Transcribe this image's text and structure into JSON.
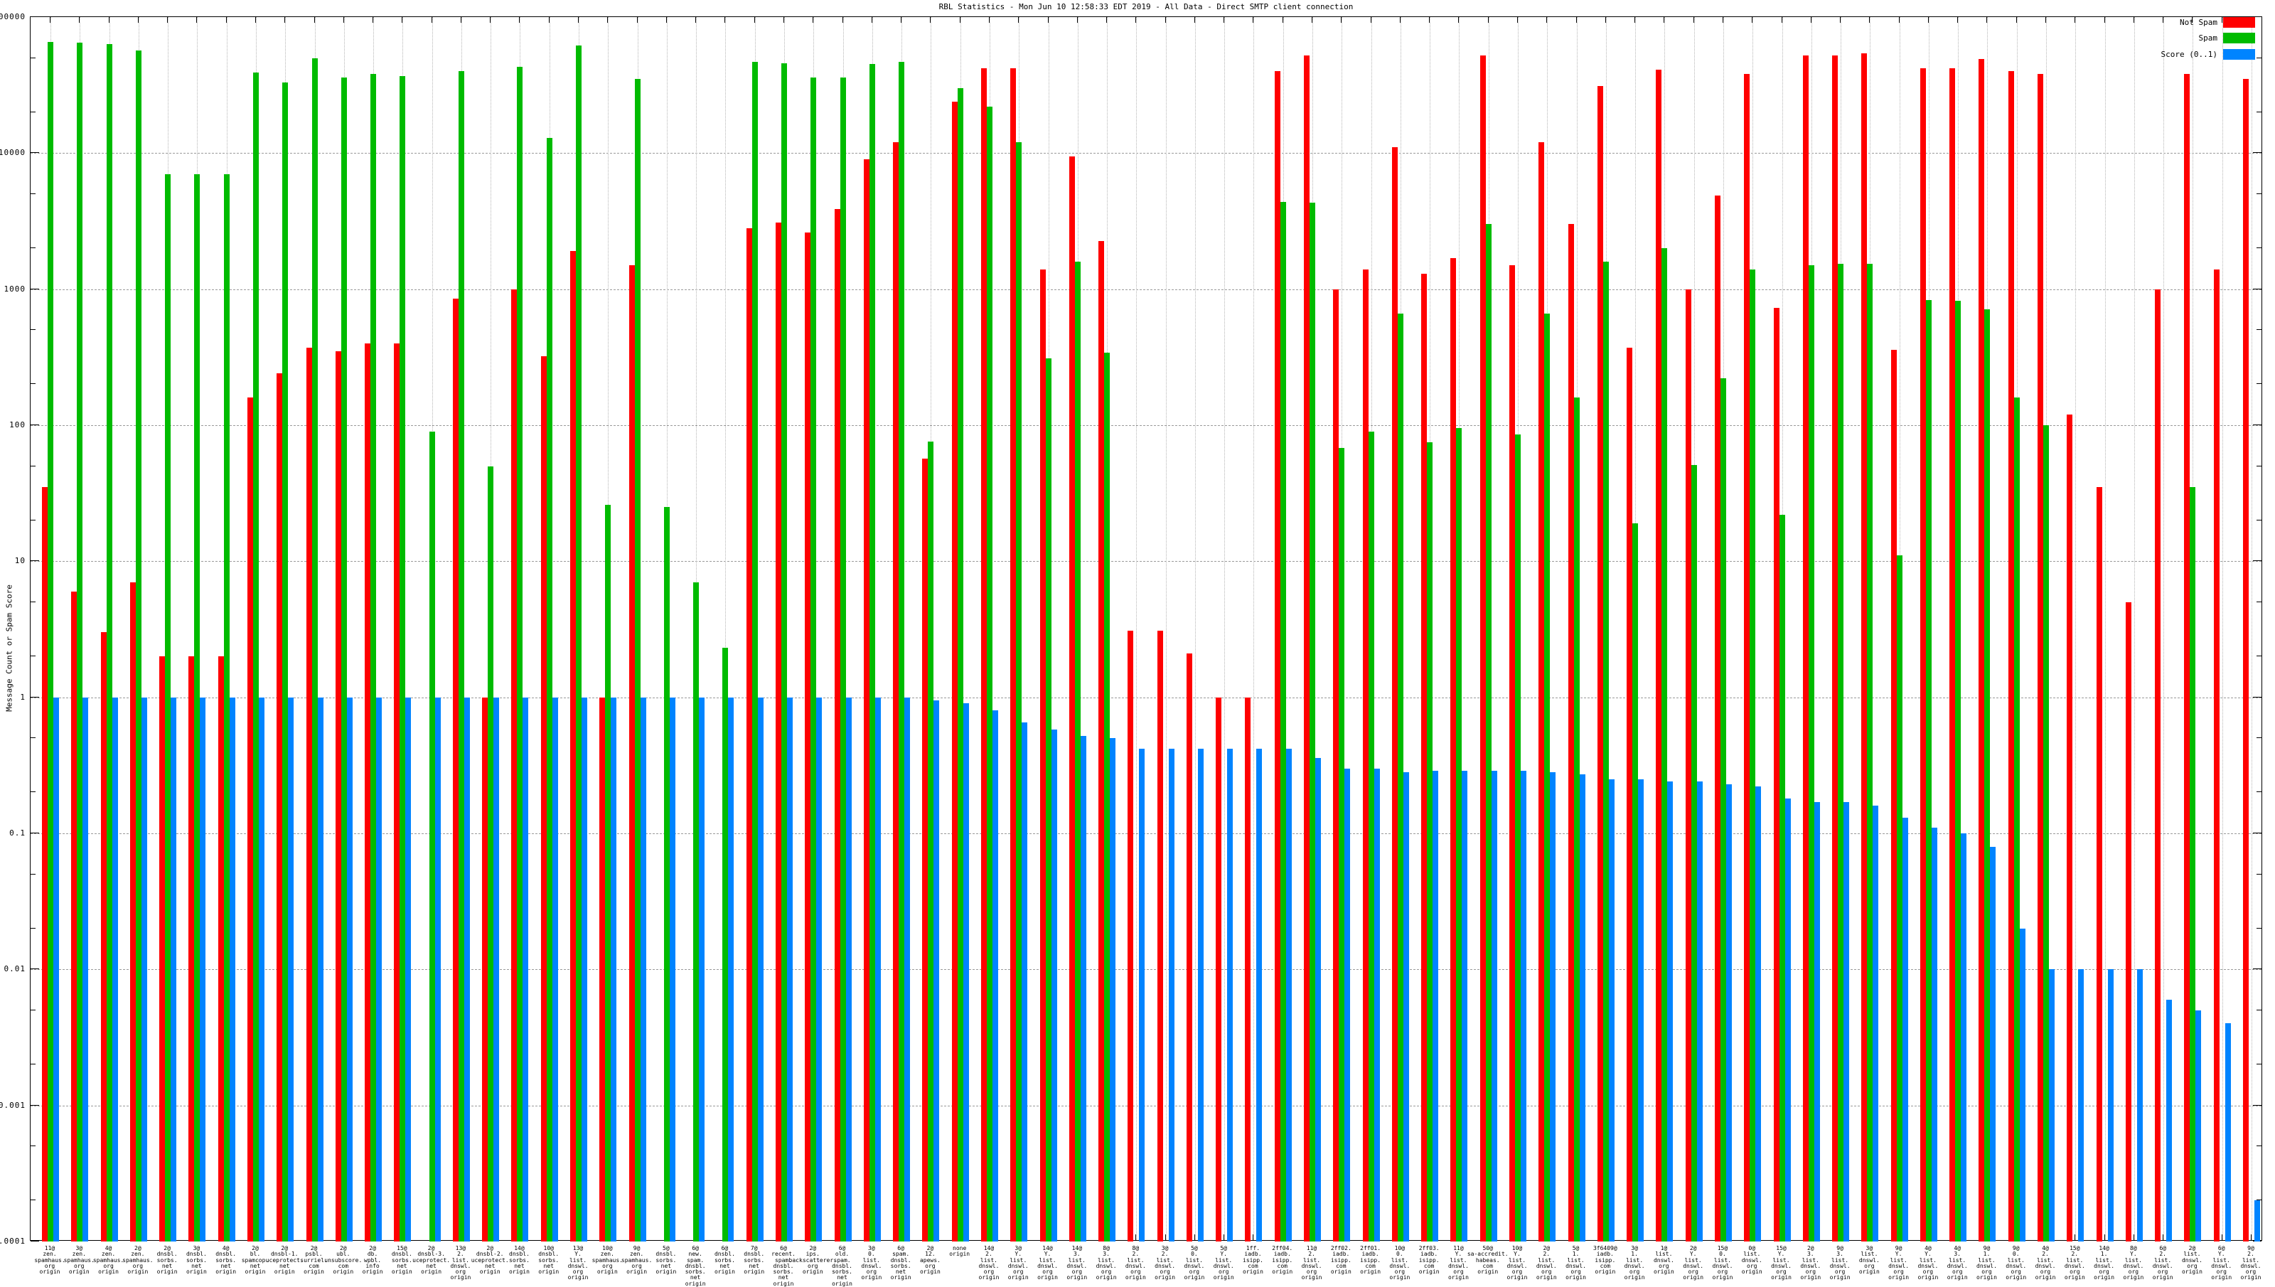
{
  "header": {
    "title": "RBL Statistics - Mon Jun 10 12:58:33 EDT 2019 - All Data - Direct SMTP client connection"
  },
  "y_axis": {
    "label": "Message Count or Spam Score",
    "ticks": [
      {
        "exp": 5,
        "label": "100000"
      },
      {
        "exp": 4,
        "label": "10000"
      },
      {
        "exp": 3,
        "label": "1000"
      },
      {
        "exp": 2,
        "label": "100"
      },
      {
        "exp": 1,
        "label": "10"
      },
      {
        "exp": 0,
        "label": "1"
      },
      {
        "exp": -1,
        "label": "0.1"
      },
      {
        "exp": -2,
        "label": "0.01"
      },
      {
        "exp": -3,
        "label": "0.001"
      },
      {
        "exp": -4,
        "label": "0.0001"
      }
    ]
  },
  "colors": {
    "not_spam": "#ff0000",
    "spam": "#00bb00",
    "score": "#0084ff",
    "axis": "#000000",
    "grid_dash": "#9a9a9a",
    "grid_dot": "#b5b5b5"
  },
  "chart_data": {
    "type": "bar",
    "log_scale": true,
    "ylim": [
      0.0001,
      100000
    ],
    "ylabel": "Message Count or Spam Score",
    "grid": true,
    "legend_position": "top-right",
    "series": [
      {
        "key": "not_spam",
        "name": "Not Spam",
        "color": "#ff0000"
      },
      {
        "key": "spam",
        "name": "Spam",
        "color": "#00bb00"
      },
      {
        "key": "score",
        "name": "Score (0..1)",
        "color": "#0084ff"
      }
    ],
    "groups": [
      {
        "label_lines": [
          "11@",
          "zen.",
          "spamhaus.",
          "org",
          "origin"
        ],
        "not_spam": 35,
        "spam": 66000,
        "score": 1.0
      },
      {
        "label_lines": [
          "3@",
          "zen.",
          "spamhaus.",
          "org",
          "origin"
        ],
        "not_spam": 6,
        "spam": 65000,
        "score": 1.0
      },
      {
        "label_lines": [
          "4@",
          "zen.",
          "spamhaus.",
          "org",
          "origin"
        ],
        "not_spam": 3,
        "spam": 63000,
        "score": 1.0
      },
      {
        "label_lines": [
          "2@",
          "zen.",
          "spamhaus.",
          "org",
          "origin"
        ],
        "not_spam": 7,
        "spam": 57000,
        "score": 1.0
      },
      {
        "label_lines": [
          "2@",
          "dnsbl.",
          "sorbs.",
          "net",
          "origin"
        ],
        "not_spam": 2,
        "spam": 7000,
        "score": 1.0
      },
      {
        "label_lines": [
          "3@",
          "dnsbl.",
          "sorbs.",
          "net",
          "origin"
        ],
        "not_spam": 2,
        "spam": 7000,
        "score": 1.0
      },
      {
        "label_lines": [
          "4@",
          "dnsbl.",
          "sorbs.",
          "net",
          "origin"
        ],
        "not_spam": 2,
        "spam": 7000,
        "score": 1.0
      },
      {
        "label_lines": [
          "2@",
          "bl.",
          "spamcop.",
          "net",
          "origin"
        ],
        "not_spam": 160,
        "spam": 39000,
        "score": 1.0
      },
      {
        "label_lines": [
          "2@",
          "dnsbl-1.",
          "uceprotect.",
          "net",
          "origin"
        ],
        "not_spam": 240,
        "spam": 33000,
        "score": 1.0
      },
      {
        "label_lines": [
          "2@",
          "psbl.",
          "surriel.",
          "com",
          "origin"
        ],
        "not_spam": 370,
        "spam": 50000,
        "score": 1.0
      },
      {
        "label_lines": [
          "2@",
          "ubl.",
          "unsubscore.",
          "com",
          "origin"
        ],
        "not_spam": 350,
        "spam": 36000,
        "score": 1.0
      },
      {
        "label_lines": [
          "2@",
          "db.",
          "wpbl.",
          "info",
          "origin"
        ],
        "not_spam": 400,
        "spam": 38000,
        "score": 1.0
      },
      {
        "label_lines": [
          "15@",
          "dnsbl.",
          "sorbs.",
          "net",
          "origin"
        ],
        "not_spam": 400,
        "spam": 37000,
        "score": 1.0
      },
      {
        "label_lines": [
          "2@",
          "dnsbl-3.",
          "uceprotect.",
          "net",
          "origin"
        ],
        "not_spam": null,
        "spam": 90,
        "score": 1.0
      },
      {
        "label_lines": [
          "13@",
          "2.",
          "list.",
          "dnswl.",
          "org",
          "origin"
        ],
        "not_spam": 850,
        "spam": 40000,
        "score": 1.0
      },
      {
        "label_lines": [
          "2@",
          "dnsbl-2.",
          "uceprotect.",
          "net",
          "origin"
        ],
        "not_spam": 1,
        "spam": 50,
        "score": 1.0
      },
      {
        "label_lines": [
          "14@",
          "dnsbl.",
          "sorbs.",
          "net",
          "origin"
        ],
        "not_spam": 1000,
        "spam": 43000,
        "score": 1.0
      },
      {
        "label_lines": [
          "10@",
          "dnsbl.",
          "sorbs.",
          "net",
          "origin"
        ],
        "not_spam": 320,
        "spam": 13000,
        "score": 1.0
      },
      {
        "label_lines": [
          "13@",
          "Y.",
          "list.",
          "dnswl.",
          "org",
          "origin"
        ],
        "not_spam": 1900,
        "spam": 62000,
        "score": 1.0
      },
      {
        "label_lines": [
          "10@",
          "zen.",
          "spamhaus.",
          "org",
          "origin"
        ],
        "not_spam": 1,
        "spam": 26,
        "score": 1.0
      },
      {
        "label_lines": [
          "9@",
          "zen.",
          "spamhaus.",
          "org",
          "origin"
        ],
        "not_spam": 1500,
        "spam": 35000,
        "score": 1.0
      },
      {
        "label_lines": [
          "5@",
          "dnsbl.",
          "sorbs.",
          "net",
          "origin"
        ],
        "not_spam": null,
        "spam": 25,
        "score": 1.0
      },
      {
        "label_lines": [
          "6@",
          "new.",
          "spam.",
          "dnsbl.",
          "sorbs.",
          "net",
          "origin"
        ],
        "not_spam": null,
        "spam": 7,
        "score": 1.0
      },
      {
        "label_lines": [
          "6@",
          "dnsbl.",
          "sorbs.",
          "net",
          "origin"
        ],
        "not_spam": null,
        "spam": 2.3,
        "score": 1.0
      },
      {
        "label_lines": [
          "7@",
          "dnsbl.",
          "sorbs.",
          "net",
          "origin"
        ],
        "not_spam": 2800,
        "spam": 47000,
        "score": 1.0
      },
      {
        "label_lines": [
          "6@",
          "recent.",
          "spam.",
          "dnsbl.",
          "sorbs.",
          "net",
          "origin"
        ],
        "not_spam": 3100,
        "spam": 46000,
        "score": 1.0
      },
      {
        "label_lines": [
          "2@",
          "ips.",
          "backscatterer.",
          "org",
          "origin"
        ],
        "not_spam": 2600,
        "spam": 36000,
        "score": 1.0
      },
      {
        "label_lines": [
          "6@",
          "old.",
          "spam.",
          "dnsbl.",
          "sorbs.",
          "net",
          "origin"
        ],
        "not_spam": 3900,
        "spam": 36000,
        "score": 1.0
      },
      {
        "label_lines": [
          "3@",
          "0.",
          "list.",
          "dnswl.",
          "org",
          "origin"
        ],
        "not_spam": 9000,
        "spam": 45000,
        "score": 1.0
      },
      {
        "label_lines": [
          "6@",
          "spam.",
          "dnsbl.",
          "sorbs.",
          "net",
          "origin"
        ],
        "not_spam": 12000,
        "spam": 47000,
        "score": 1.0
      },
      {
        "label_lines": [
          "2@",
          "12.",
          "apews.",
          "org",
          "origin"
        ],
        "not_spam": 57,
        "spam": 76,
        "score": 0.95
      },
      {
        "label_lines": [
          "none",
          "origin"
        ],
        "not_spam": 24000,
        "spam": 30000,
        "score": 0.9
      },
      {
        "label_lines": [
          "14@",
          "2.",
          "list.",
          "dnswl.",
          "org",
          "origin"
        ],
        "not_spam": 42000,
        "spam": 22000,
        "score": 0.8
      },
      {
        "label_lines": [
          "3@",
          "Y.",
          "list.",
          "dnswl.",
          "org",
          "origin"
        ],
        "not_spam": 42000,
        "spam": 12000,
        "score": 0.65
      },
      {
        "label_lines": [
          "14@",
          "Y.",
          "list.",
          "dnswl.",
          "org",
          "origin"
        ],
        "not_spam": 1400,
        "spam": 310,
        "score": 0.58
      },
      {
        "label_lines": [
          "14@",
          "3.",
          "list.",
          "dnswl.",
          "org",
          "origin"
        ],
        "not_spam": 9500,
        "spam": 1600,
        "score": 0.52
      },
      {
        "label_lines": [
          "8@",
          "3.",
          "list.",
          "dnswl.",
          "org",
          "origin"
        ],
        "not_spam": 2250,
        "spam": 340,
        "score": 0.5
      },
      {
        "label_lines": [
          "8@",
          "2.",
          "list.",
          "dnswl.",
          "org",
          "origin"
        ],
        "not_spam": 3.1,
        "spam": null,
        "score": 0.42
      },
      {
        "label_lines": [
          "3@",
          "2.",
          "list.",
          "dnswl.",
          "org",
          "origin"
        ],
        "not_spam": 3.1,
        "spam": null,
        "score": 0.42
      },
      {
        "label_lines": [
          "5@",
          "0.",
          "list.",
          "dnswl.",
          "org",
          "origin"
        ],
        "not_spam": 2.1,
        "spam": null,
        "score": 0.42
      },
      {
        "label_lines": [
          "5@",
          "Y.",
          "list.",
          "dnswl.",
          "org",
          "origin"
        ],
        "not_spam": 1,
        "spam": null,
        "score": 0.42
      },
      {
        "label_lines": [
          "1ff.",
          "iadb.",
          "isipp.",
          "com",
          "origin"
        ],
        "not_spam": 1,
        "spam": null,
        "score": 0.42
      },
      {
        "label_lines": [
          "2ff04.",
          "iadb.",
          "isipp.",
          "com",
          "origin"
        ],
        "not_spam": 40000,
        "spam": 4400,
        "score": 0.42
      },
      {
        "label_lines": [
          "11@",
          "2.",
          "list.",
          "dnswl.",
          "org",
          "origin"
        ],
        "not_spam": 52000,
        "spam": 4300,
        "score": 0.36
      },
      {
        "label_lines": [
          "2ff02.",
          "iadb.",
          "isipp.",
          "com",
          "origin"
        ],
        "not_spam": 1000,
        "spam": 68,
        "score": 0.3
      },
      {
        "label_lines": [
          "2ff01.",
          "iadb.",
          "isipp.",
          "com",
          "origin"
        ],
        "not_spam": 1400,
        "spam": 90,
        "score": 0.3
      },
      {
        "label_lines": [
          "10@",
          "0.",
          "list.",
          "dnswl.",
          "org",
          "origin"
        ],
        "not_spam": 11000,
        "spam": 660,
        "score": 0.28
      },
      {
        "label_lines": [
          "2ff03.",
          "iadb.",
          "isipp.",
          "com",
          "origin"
        ],
        "not_spam": 1300,
        "spam": 75,
        "score": 0.29
      },
      {
        "label_lines": [
          "11@",
          "Y.",
          "list.",
          "dnswl.",
          "org",
          "origin"
        ],
        "not_spam": 1700,
        "spam": 95,
        "score": 0.29
      },
      {
        "label_lines": [
          "50@",
          "sa-accredit.",
          "habeas.",
          "com",
          "origin"
        ],
        "not_spam": 52000,
        "spam": 3000,
        "score": 0.29
      },
      {
        "label_lines": [
          "10@",
          "Y.",
          "list.",
          "dnswl.",
          "org",
          "origin"
        ],
        "not_spam": 1500,
        "spam": 86,
        "score": 0.29
      },
      {
        "label_lines": [
          "2@",
          "2.",
          "list.",
          "dnswl.",
          "org",
          "origin"
        ],
        "not_spam": 12000,
        "spam": 660,
        "score": 0.28
      },
      {
        "label_lines": [
          "5@",
          "1.",
          "list.",
          "dnswl.",
          "org",
          "origin"
        ],
        "not_spam": 3000,
        "spam": 160,
        "score": 0.27
      },
      {
        "label_lines": [
          "3f6409@",
          "iadb.",
          "isipp.",
          "com",
          "origin"
        ],
        "not_spam": 31000,
        "spam": 1600,
        "score": 0.25
      },
      {
        "label_lines": [
          "3@",
          "1.",
          "list.",
          "dnswl.",
          "org",
          "origin"
        ],
        "not_spam": 370,
        "spam": 19,
        "score": 0.25
      },
      {
        "label_lines": [
          "1@",
          "list.",
          "dnswl.",
          "org",
          "origin"
        ],
        "not_spam": 41000,
        "spam": 2000,
        "score": 0.24
      },
      {
        "label_lines": [
          "2@",
          "Y.",
          "list.",
          "dnswl.",
          "org",
          "origin"
        ],
        "not_spam": 1000,
        "spam": 51,
        "score": 0.24
      },
      {
        "label_lines": [
          "15@",
          "0.",
          "list.",
          "dnswl.",
          "org",
          "origin"
        ],
        "not_spam": 4900,
        "spam": 220,
        "score": 0.23
      },
      {
        "label_lines": [
          "0@",
          "list.",
          "dnswl.",
          "org",
          "origin"
        ],
        "not_spam": 38000,
        "spam": 1400,
        "score": 0.22
      },
      {
        "label_lines": [
          "15@",
          "Y.",
          "list.",
          "dnswl.",
          "org",
          "origin"
        ],
        "not_spam": 730,
        "spam": 22,
        "score": 0.18
      },
      {
        "label_lines": [
          "2@",
          "3.",
          "list.",
          "dnswl.",
          "org",
          "origin"
        ],
        "not_spam": 52000,
        "spam": 1500,
        "score": 0.17
      },
      {
        "label_lines": [
          "9@",
          "3.",
          "list.",
          "dnswl.",
          "org",
          "origin"
        ],
        "not_spam": 52000,
        "spam": 1540,
        "score": 0.17
      },
      {
        "label_lines": [
          "3@",
          "list.",
          "dnswl.",
          "org",
          "origin"
        ],
        "not_spam": 54000,
        "spam": 1530,
        "score": 0.16
      },
      {
        "label_lines": [
          "9@",
          "Y.",
          "list.",
          "dnswl.",
          "org",
          "origin"
        ],
        "not_spam": 360,
        "spam": 11,
        "score": 0.13
      },
      {
        "label_lines": [
          "4@",
          "Y.",
          "list.",
          "dnswl.",
          "org",
          "origin"
        ],
        "not_spam": 42000,
        "spam": 830,
        "score": 0.11
      },
      {
        "label_lines": [
          "4@",
          "3.",
          "list.",
          "dnswl.",
          "org",
          "origin"
        ],
        "not_spam": 42000,
        "spam": 820,
        "score": 0.1
      },
      {
        "label_lines": [
          "9@",
          "1.",
          "list.",
          "dnswl.",
          "org",
          "origin"
        ],
        "not_spam": 49000,
        "spam": 710,
        "score": 0.08
      },
      {
        "label_lines": [
          "9@",
          "0.",
          "list.",
          "dnswl.",
          "org",
          "origin"
        ],
        "not_spam": 40000,
        "spam": 160,
        "score": 0.02
      },
      {
        "label_lines": [
          "4@",
          "2.",
          "list.",
          "dnswl.",
          "org",
          "origin"
        ],
        "not_spam": 38000,
        "spam": 100,
        "score": 0.01
      },
      {
        "label_lines": [
          "15@",
          "2.",
          "list.",
          "dnswl.",
          "org",
          "origin"
        ],
        "not_spam": 120,
        "spam": null,
        "score": 0.01
      },
      {
        "label_lines": [
          "14@",
          "1.",
          "list.",
          "dnswl.",
          "org",
          "origin"
        ],
        "not_spam": 35,
        "spam": null,
        "score": 0.01
      },
      {
        "label_lines": [
          "8@",
          "Y.",
          "list.",
          "dnswl.",
          "org",
          "origin"
        ],
        "not_spam": 5,
        "spam": null,
        "score": 0.01
      },
      {
        "label_lines": [
          "6@",
          "2.",
          "list.",
          "dnswl.",
          "org",
          "origin"
        ],
        "not_spam": 1000,
        "spam": null,
        "score": 0.006
      },
      {
        "label_lines": [
          "2@",
          "list.",
          "dnswl.",
          "org",
          "origin"
        ],
        "not_spam": 38000,
        "spam": 35,
        "score": 0.005
      },
      {
        "label_lines": [
          "6@",
          "Y.",
          "list.",
          "dnswl.",
          "org",
          "origin"
        ],
        "not_spam": 1400,
        "spam": null,
        "score": 0.004
      },
      {
        "label_lines": [
          "9@",
          "2.",
          "list.",
          "dnswl.",
          "org",
          "origin"
        ],
        "not_spam": 35000,
        "spam": null,
        "score": 0.0002
      }
    ]
  }
}
